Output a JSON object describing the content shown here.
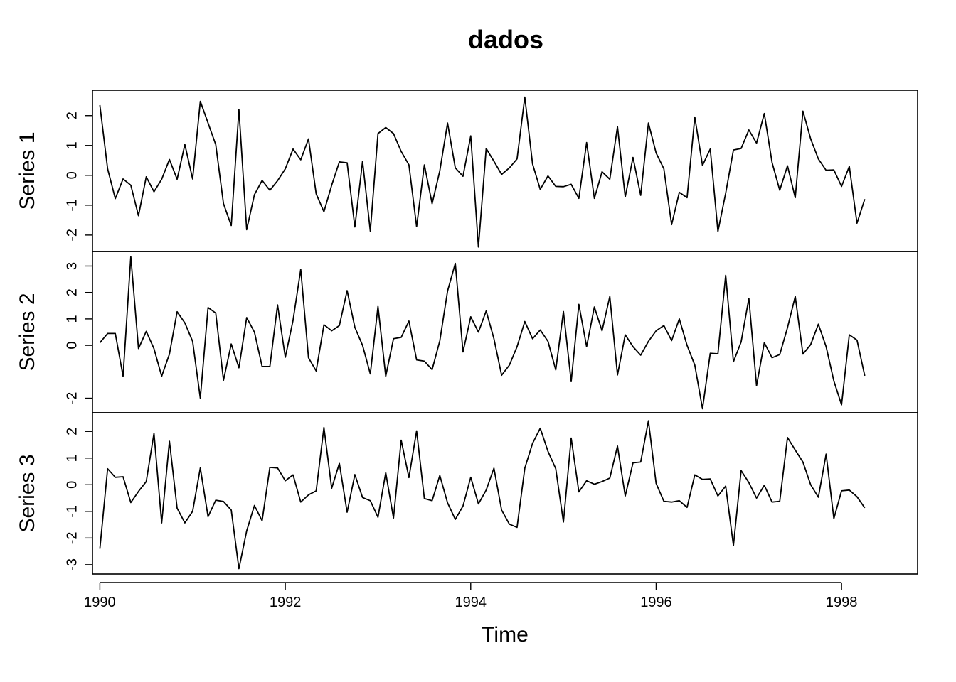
{
  "chart_data": {
    "type": "line",
    "title": "dados",
    "xlabel": "Time",
    "x_start": 1990,
    "frequency": 12,
    "x_ticks": [
      "1990",
      "1992",
      "1994",
      "1996",
      "1998"
    ],
    "xlim": [
      1989.92,
      1998.82
    ],
    "grid": false,
    "series": [
      {
        "name": "Series 1",
        "ylim": [
          -2.55,
          2.85
        ],
        "y_ticks": [
          "-2",
          "-1",
          "0",
          "1",
          "2"
        ],
        "values": [
          2.35,
          0.22,
          -0.78,
          -0.12,
          -0.33,
          -1.35,
          -0.05,
          -0.55,
          -0.13,
          0.53,
          -0.13,
          1.03,
          -0.12,
          2.48,
          1.75,
          1.03,
          -0.95,
          -1.68,
          2.2,
          -1.82,
          -0.65,
          -0.17,
          -0.5,
          -0.18,
          0.22,
          0.88,
          0.52,
          1.22,
          -0.62,
          -1.22,
          -0.33,
          0.45,
          0.42,
          -1.73,
          0.47,
          -1.87,
          1.4,
          1.6,
          1.4,
          0.8,
          0.35,
          -1.72,
          0.35,
          -0.95,
          0.15,
          1.75,
          0.25,
          -0.03,
          1.32,
          -2.4,
          0.9,
          0.47,
          0.03,
          0.25,
          0.55,
          2.62,
          0.38,
          -0.47,
          -0.02,
          -0.37,
          -0.38,
          -0.3,
          -0.77,
          1.1,
          -0.77,
          0.12,
          -0.13,
          1.63,
          -0.72,
          0.6,
          -0.67,
          1.75,
          0.75,
          0.22,
          -1.65,
          -0.57,
          -0.75,
          1.95,
          0.33,
          0.88,
          -1.88,
          -0.6,
          0.85,
          0.9,
          1.52,
          1.08,
          2.07,
          0.43,
          -0.5,
          0.32,
          -0.75,
          2.15,
          1.22,
          0.55,
          0.17,
          0.18,
          -0.37,
          0.3,
          -1.6,
          -0.8
        ]
      },
      {
        "name": "Series 2",
        "ylim": [
          -2.55,
          3.55
        ],
        "y_ticks": [
          "-2",
          "0",
          "1",
          "2",
          "3"
        ],
        "values": [
          0.1,
          0.45,
          0.45,
          -1.17,
          3.35,
          -0.12,
          0.53,
          -0.13,
          -1.17,
          -0.33,
          1.27,
          0.85,
          0.15,
          -2.0,
          1.43,
          1.22,
          -1.32,
          0.05,
          -0.85,
          1.05,
          0.5,
          -0.8,
          -0.8,
          1.53,
          -0.45,
          0.95,
          2.87,
          -0.47,
          -0.97,
          0.78,
          0.55,
          0.75,
          2.07,
          0.68,
          0.0,
          -1.08,
          1.47,
          -1.17,
          0.25,
          0.3,
          0.92,
          -0.55,
          -0.6,
          -0.92,
          0.17,
          2.05,
          3.1,
          -0.25,
          1.08,
          0.5,
          1.3,
          0.25,
          -1.13,
          -0.75,
          -0.05,
          0.9,
          0.25,
          0.58,
          0.15,
          -0.93,
          1.28,
          -1.37,
          1.55,
          -0.05,
          1.45,
          0.55,
          1.85,
          -1.12,
          0.4,
          -0.05,
          -0.37,
          0.15,
          0.55,
          0.75,
          0.18,
          1.0,
          0.0,
          -0.75,
          -2.4,
          -0.3,
          -0.32,
          2.65,
          -0.62,
          0.13,
          1.78,
          -1.53,
          0.1,
          -0.47,
          -0.35,
          0.67,
          1.85,
          -0.33,
          0.03,
          0.8,
          -0.05,
          -1.35,
          -2.25,
          0.4,
          0.2,
          -1.15
        ]
      },
      {
        "name": "Series 3",
        "ylim": [
          -3.35,
          2.7
        ],
        "y_ticks": [
          "-3",
          "-2",
          "-1",
          "0",
          "1",
          "2"
        ],
        "values": [
          -2.4,
          0.6,
          0.28,
          0.3,
          -0.67,
          -0.25,
          0.12,
          1.93,
          -1.43,
          1.63,
          -0.88,
          -1.43,
          -1.0,
          0.63,
          -1.2,
          -0.58,
          -0.63,
          -0.95,
          -3.15,
          -1.73,
          -0.78,
          -1.35,
          0.65,
          0.63,
          0.15,
          0.37,
          -0.65,
          -0.38,
          -0.23,
          2.15,
          -0.13,
          0.8,
          -1.03,
          0.38,
          -0.48,
          -0.6,
          -1.22,
          0.45,
          -1.25,
          1.67,
          0.27,
          2.02,
          -0.52,
          -0.6,
          0.35,
          -0.68,
          -1.3,
          -0.8,
          0.28,
          -0.72,
          -0.2,
          0.62,
          -0.95,
          -1.48,
          -1.6,
          0.62,
          1.55,
          2.12,
          1.25,
          0.6,
          -1.4,
          1.75,
          -0.27,
          0.15,
          0.02,
          0.12,
          0.25,
          1.45,
          -0.42,
          0.82,
          0.85,
          2.4,
          0.05,
          -0.62,
          -0.65,
          -0.6,
          -0.85,
          0.37,
          0.2,
          0.22,
          -0.42,
          -0.05,
          -2.28,
          0.53,
          0.08,
          -0.5,
          -0.02,
          -0.65,
          -0.62,
          1.77,
          1.3,
          0.85,
          0.0,
          -0.47,
          1.15,
          -1.27,
          -0.23,
          -0.2,
          -0.45,
          -0.87
        ]
      }
    ]
  }
}
